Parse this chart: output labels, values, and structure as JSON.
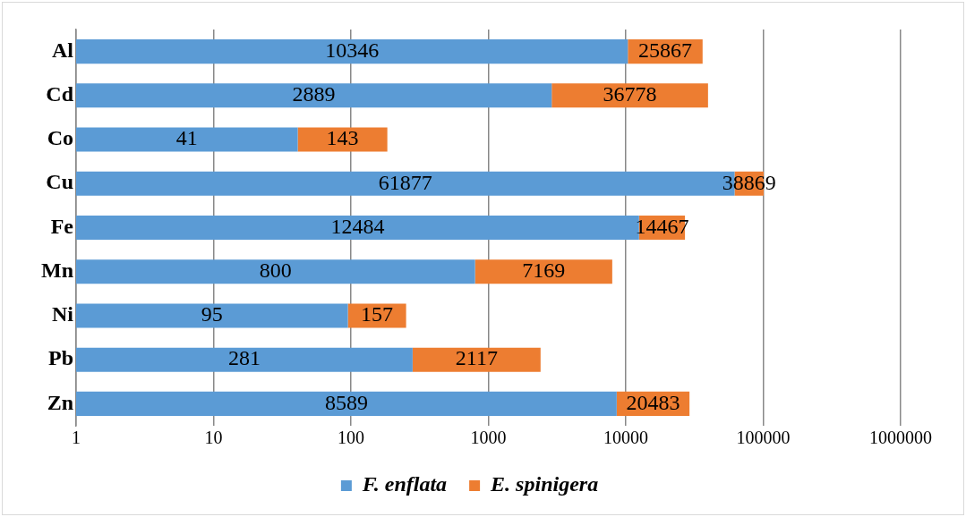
{
  "chart_data": {
    "type": "bar",
    "orientation": "horizontal",
    "stacked": true,
    "log": "x",
    "categories": [
      "Al",
      "Cd",
      "Co",
      "Cu",
      "Fe",
      "Mn",
      "Ni",
      "Pb",
      "Zn"
    ],
    "series": [
      {
        "name": "F. enflata",
        "color": "#5b9bd5",
        "values": [
          10346,
          2889,
          41,
          61877,
          12484,
          800,
          95,
          281,
          8589
        ]
      },
      {
        "name": "E. spinigera",
        "color": "#ed7d31",
        "values": [
          25867,
          36778,
          143,
          38869,
          14467,
          7169,
          157,
          2117,
          20483
        ]
      }
    ],
    "xlim": [
      1,
      1000000
    ],
    "xticks": [
      1,
      10,
      100,
      1000,
      10000,
      100000,
      1000000
    ],
    "grid": "x",
    "legend": "bottom",
    "data_labels": true
  }
}
